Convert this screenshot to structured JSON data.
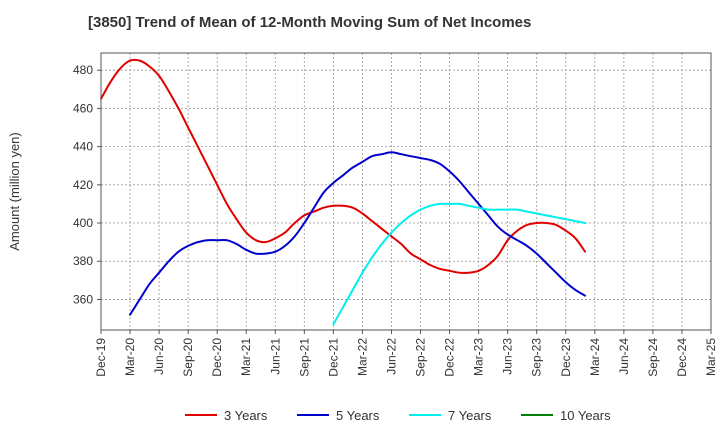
{
  "chart_data": {
    "type": "line",
    "title": "[3850]  Trend of Mean of 12-Month Moving Sum of Net Incomes",
    "xlabel": "",
    "ylabel": "Amount (million yen)",
    "x_ticks": [
      "Dec-19",
      "Mar-20",
      "Jun-20",
      "Sep-20",
      "Dec-20",
      "Mar-21",
      "Jun-21",
      "Sep-21",
      "Dec-21",
      "Mar-22",
      "Jun-22",
      "Sep-22",
      "Dec-22",
      "Mar-23",
      "Jun-23",
      "Sep-23",
      "Dec-23",
      "Mar-24",
      "Jun-24",
      "Sep-24",
      "Dec-24",
      "Mar-25"
    ],
    "y_ticks": [
      360,
      380,
      400,
      420,
      440,
      460,
      480
    ],
    "ylim": [
      344,
      489
    ],
    "grid": true,
    "legend_position": "bottom",
    "series": [
      {
        "name": "3 Years",
        "color": "#e00000",
        "points": [
          [
            0,
            465
          ],
          [
            1,
            474
          ],
          [
            2,
            481
          ],
          [
            3,
            485
          ],
          [
            4,
            485
          ],
          [
            5,
            482
          ],
          [
            6,
            477
          ],
          [
            7,
            469
          ],
          [
            8,
            460
          ],
          [
            9,
            450
          ],
          [
            10,
            440
          ],
          [
            11,
            430
          ],
          [
            12,
            420
          ],
          [
            13,
            410
          ],
          [
            14,
            402
          ],
          [
            15,
            395
          ],
          [
            16,
            391
          ],
          [
            17,
            390
          ],
          [
            18,
            392
          ],
          [
            19,
            395
          ],
          [
            20,
            400
          ],
          [
            21,
            404
          ],
          [
            22,
            406
          ],
          [
            23,
            408
          ],
          [
            24,
            409
          ],
          [
            25,
            409
          ],
          [
            26,
            408
          ],
          [
            27,
            405
          ],
          [
            28,
            401
          ],
          [
            29,
            397
          ],
          [
            30,
            393
          ],
          [
            31,
            389
          ],
          [
            32,
            384
          ],
          [
            33,
            381
          ],
          [
            34,
            378
          ],
          [
            35,
            376
          ],
          [
            36,
            375
          ],
          [
            37,
            374
          ],
          [
            38,
            374
          ],
          [
            39,
            375
          ],
          [
            40,
            378
          ],
          [
            41,
            383
          ],
          [
            42,
            391
          ],
          [
            43,
            396
          ],
          [
            44,
            399
          ],
          [
            45,
            400
          ],
          [
            46,
            400
          ],
          [
            47,
            399
          ],
          [
            48,
            396
          ],
          [
            49,
            392
          ],
          [
            50,
            385
          ]
        ]
      },
      {
        "name": "5 Years",
        "color": "#0000cc",
        "points": [
          [
            3,
            352
          ],
          [
            4,
            360
          ],
          [
            5,
            368
          ],
          [
            6,
            374
          ],
          [
            7,
            380
          ],
          [
            8,
            385
          ],
          [
            9,
            388
          ],
          [
            10,
            390
          ],
          [
            11,
            391
          ],
          [
            12,
            391
          ],
          [
            13,
            391
          ],
          [
            14,
            389
          ],
          [
            15,
            386
          ],
          [
            16,
            384
          ],
          [
            17,
            384
          ],
          [
            18,
            385
          ],
          [
            19,
            388
          ],
          [
            20,
            393
          ],
          [
            21,
            400
          ],
          [
            22,
            408
          ],
          [
            23,
            416
          ],
          [
            24,
            421
          ],
          [
            25,
            425
          ],
          [
            26,
            429
          ],
          [
            27,
            432
          ],
          [
            28,
            435
          ],
          [
            29,
            436
          ],
          [
            30,
            437
          ],
          [
            31,
            436
          ],
          [
            32,
            435
          ],
          [
            33,
            434
          ],
          [
            34,
            433
          ],
          [
            35,
            431
          ],
          [
            36,
            427
          ],
          [
            37,
            422
          ],
          [
            38,
            416
          ],
          [
            39,
            410
          ],
          [
            40,
            404
          ],
          [
            41,
            398
          ],
          [
            42,
            394
          ],
          [
            43,
            391
          ],
          [
            44,
            388
          ],
          [
            45,
            384
          ],
          [
            46,
            379
          ],
          [
            47,
            374
          ],
          [
            48,
            369
          ],
          [
            49,
            365
          ],
          [
            50,
            362
          ]
        ]
      },
      {
        "name": "7 Years",
        "color": "#00eeee",
        "points": [
          [
            24,
            347
          ],
          [
            25,
            356
          ],
          [
            26,
            365
          ],
          [
            27,
            374
          ],
          [
            28,
            382
          ],
          [
            29,
            389
          ],
          [
            30,
            395
          ],
          [
            31,
            400
          ],
          [
            32,
            404
          ],
          [
            33,
            407
          ],
          [
            34,
            409
          ],
          [
            35,
            410
          ],
          [
            36,
            410
          ],
          [
            37,
            410
          ],
          [
            38,
            409
          ],
          [
            39,
            408
          ],
          [
            40,
            407
          ],
          [
            41,
            407
          ],
          [
            42,
            407
          ],
          [
            43,
            407
          ],
          [
            44,
            406
          ],
          [
            45,
            405
          ],
          [
            46,
            404
          ],
          [
            47,
            403
          ],
          [
            48,
            402
          ],
          [
            49,
            401
          ],
          [
            50,
            400
          ]
        ]
      },
      {
        "name": "10 Years",
        "color": "#008000",
        "points": []
      }
    ]
  }
}
